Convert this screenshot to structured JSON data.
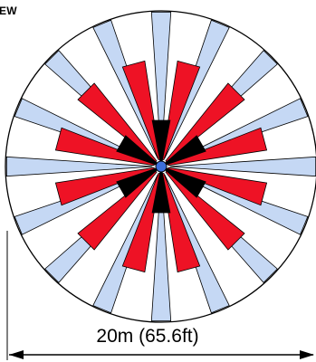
{
  "header": {
    "view_label": "EW"
  },
  "dimension": {
    "label": "20m (65.6ft)"
  },
  "pattern": {
    "outer_zone_count": 16,
    "middle_zone_count": 12,
    "inner_zone_count": 6
  },
  "colors": {
    "outer_zone_fill": "#c5d8f4",
    "middle_zone_fill": "#ee1225",
    "inner_zone_fill": "#000000",
    "sensor_center": "#3d6fdc",
    "outline": "#000000",
    "background": "#ffffff"
  }
}
